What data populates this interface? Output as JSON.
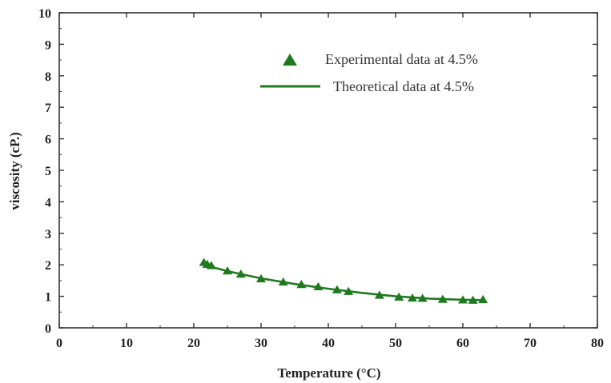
{
  "chart_data": {
    "type": "scatter",
    "title": "",
    "xlabel": "Temperature (°C)",
    "ylabel": "viscosity (cP.)",
    "xlim": [
      0,
      80
    ],
    "ylim": [
      0,
      10
    ],
    "xticks": [
      "0",
      "10",
      "20",
      "30",
      "40",
      "50",
      "60",
      "70",
      "80"
    ],
    "yticks": [
      "0",
      "1",
      "2",
      "3",
      "4",
      "5",
      "6",
      "7",
      "8",
      "9",
      "10"
    ],
    "grid": false,
    "legend_position": "top-right",
    "series": [
      {
        "name": "Experimental data at 4.5%",
        "kind": "scatter",
        "marker": "triangle",
        "color": "#1f7a1f",
        "points": [
          [
            21.5,
            2.07
          ],
          [
            22.0,
            2.01
          ],
          [
            22.6,
            1.97
          ],
          [
            25.0,
            1.8
          ],
          [
            27.0,
            1.7
          ],
          [
            30.0,
            1.55
          ],
          [
            33.3,
            1.45
          ],
          [
            36.0,
            1.37
          ],
          [
            38.5,
            1.3
          ],
          [
            41.3,
            1.2
          ],
          [
            43.0,
            1.15
          ],
          [
            47.6,
            1.03
          ],
          [
            50.5,
            0.97
          ],
          [
            52.5,
            0.94
          ],
          [
            54.0,
            0.93
          ],
          [
            57.0,
            0.9
          ],
          [
            60.0,
            0.88
          ],
          [
            61.5,
            0.87
          ],
          [
            63.0,
            0.89
          ]
        ]
      },
      {
        "name": "Theoretical data at 4.5%",
        "kind": "line",
        "color": "#1f7a1f",
        "points": [
          [
            21.5,
            2.0
          ],
          [
            25.0,
            1.8
          ],
          [
            30.0,
            1.57
          ],
          [
            35.0,
            1.39
          ],
          [
            40.0,
            1.24
          ],
          [
            45.0,
            1.11
          ],
          [
            50.0,
            1.0
          ],
          [
            55.0,
            0.93
          ],
          [
            60.0,
            0.89
          ],
          [
            63.0,
            0.88
          ]
        ]
      }
    ]
  }
}
